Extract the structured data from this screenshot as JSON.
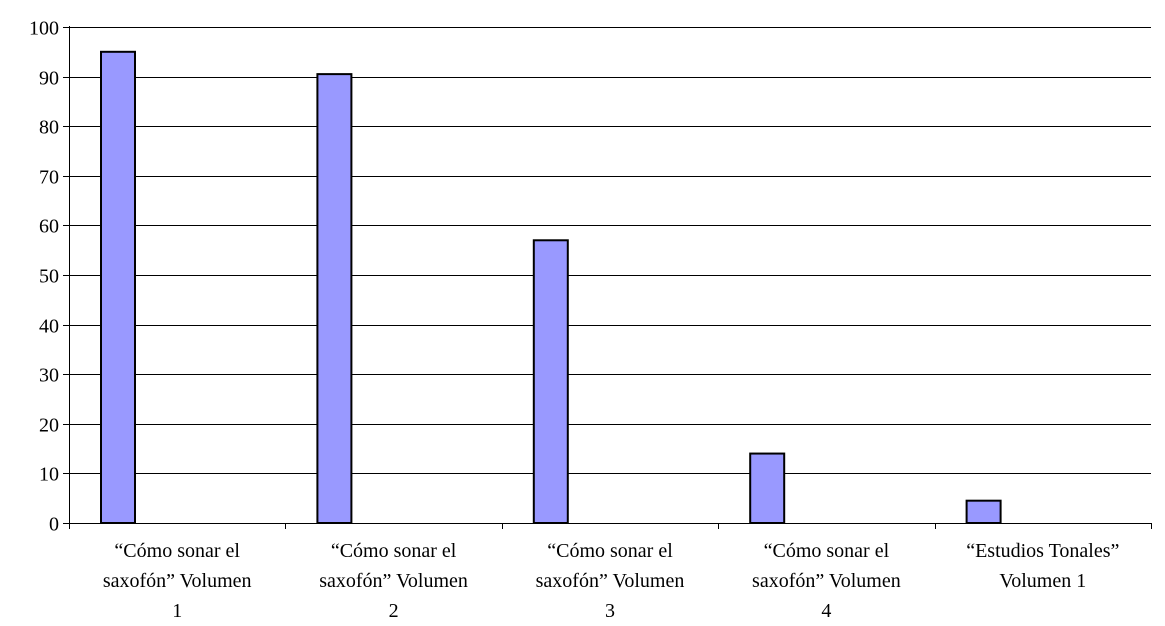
{
  "chart_data": {
    "type": "bar",
    "categories": [
      [
        "“Cómo sonar el",
        "saxofón” Volumen",
        "1"
      ],
      [
        "“Cómo sonar el",
        "saxofón” Volumen",
        "2"
      ],
      [
        "“Cómo sonar el",
        "saxofón” Volumen",
        "3"
      ],
      [
        "“Cómo sonar el",
        "saxofón” Volumen",
        "4"
      ],
      [
        "“Estudios Tonales”",
        "Volumen 1"
      ]
    ],
    "values": [
      95,
      90.5,
      57,
      14,
      4.5
    ],
    "ylim": [
      0,
      100
    ],
    "yticks": [
      0,
      10,
      20,
      30,
      40,
      50,
      60,
      70,
      80,
      90,
      100
    ],
    "grid": true,
    "legend": "none",
    "bar_color": "#9999ff",
    "title": "",
    "xlabel": "",
    "ylabel": ""
  }
}
